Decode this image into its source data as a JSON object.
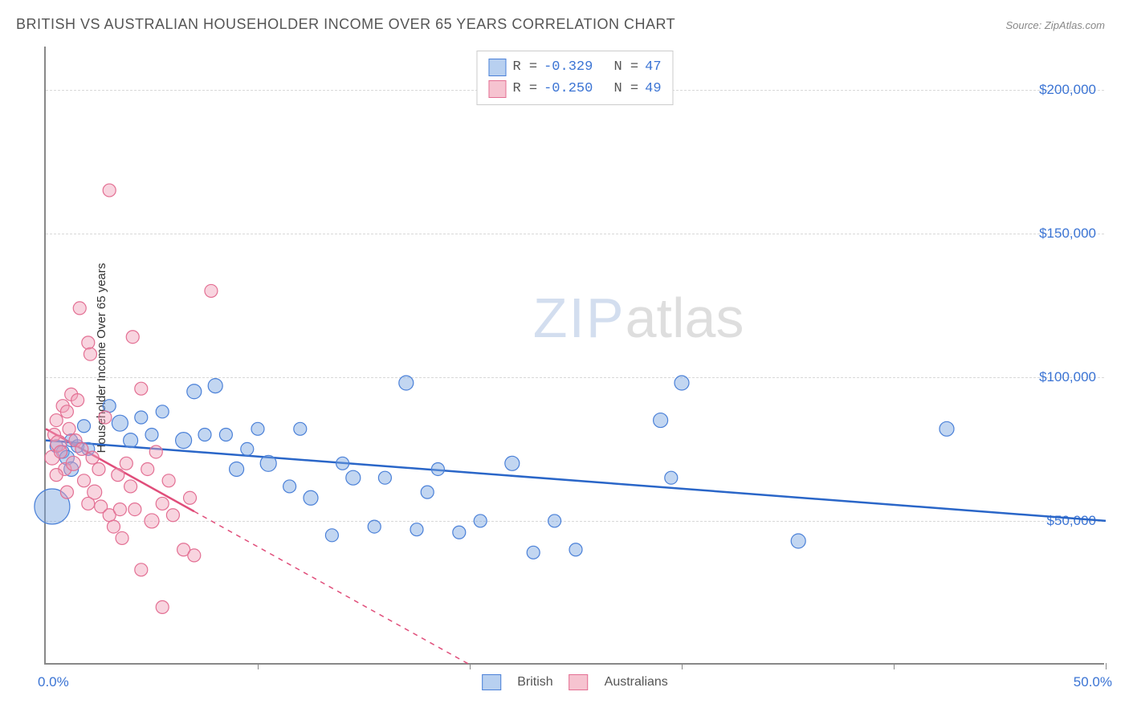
{
  "title": "BRITISH VS AUSTRALIAN HOUSEHOLDER INCOME OVER 65 YEARS CORRELATION CHART",
  "source": "Source: ZipAtlas.com",
  "watermark": {
    "zip": "ZIP",
    "atlas": "atlas"
  },
  "chart": {
    "type": "scatter",
    "ylabel": "Householder Income Over 65 years",
    "background_color": "#ffffff",
    "grid_color": "#d8d8d8",
    "axis_color": "#888888",
    "xlim": [
      0,
      50
    ],
    "ylim": [
      0,
      215000
    ],
    "x_axis": {
      "label_left": "0.0%",
      "label_right": "50.0%",
      "tick_positions_pct": [
        0,
        10,
        20,
        30,
        40,
        50
      ],
      "label_color": "#3b74d4",
      "label_fontsize": 17
    },
    "y_axis": {
      "gridlines": [
        50000,
        100000,
        150000,
        200000
      ],
      "tick_labels": [
        "$50,000",
        "$100,000",
        "$150,000",
        "$200,000"
      ],
      "label_color": "#3b74d4",
      "label_fontsize": 17
    },
    "stat_legend": {
      "border_color": "#cccccc",
      "font_family": "Courier New",
      "rows": [
        {
          "swatch_fill": "#b8d0f0",
          "swatch_border": "#4a80d8",
          "r": "-0.329",
          "n": "47"
        },
        {
          "swatch_fill": "#f6c3d0",
          "swatch_border": "#e36f93",
          "r": "-0.250",
          "n": "49"
        }
      ],
      "label_r": "R =",
      "label_n": "N =",
      "value_color": "#3b74d4",
      "text_color": "#555555"
    },
    "series_legend": [
      {
        "label": "British",
        "swatch_fill": "#b8d0f0",
        "swatch_border": "#4a80d8"
      },
      {
        "label": "Australians",
        "swatch_fill": "#f6c3d0",
        "swatch_border": "#e36f93"
      }
    ],
    "series": [
      {
        "name": "British",
        "fill": "rgba(120,165,225,0.45)",
        "stroke": "#4a80d8",
        "stroke_width": 1.2,
        "trend": {
          "color": "#2a66c8",
          "width": 2.5,
          "x1": 0,
          "y1": 78000,
          "x2": 50,
          "y2": 50000,
          "dash_solid_until_x": 50
        },
        "points": [
          {
            "x": 0.3,
            "y": 55000,
            "r": 22
          },
          {
            "x": 0.5,
            "y": 76000,
            "r": 8
          },
          {
            "x": 0.8,
            "y": 74000,
            "r": 8
          },
          {
            "x": 1.0,
            "y": 72000,
            "r": 9
          },
          {
            "x": 1.2,
            "y": 78000,
            "r": 8
          },
          {
            "x": 1.2,
            "y": 68000,
            "r": 9
          },
          {
            "x": 1.5,
            "y": 76000,
            "r": 8
          },
          {
            "x": 1.8,
            "y": 83000,
            "r": 8
          },
          {
            "x": 2.0,
            "y": 75000,
            "r": 8
          },
          {
            "x": 3.0,
            "y": 90000,
            "r": 8
          },
          {
            "x": 3.5,
            "y": 84000,
            "r": 10
          },
          {
            "x": 4.0,
            "y": 78000,
            "r": 9
          },
          {
            "x": 4.5,
            "y": 86000,
            "r": 8
          },
          {
            "x": 5.0,
            "y": 80000,
            "r": 8
          },
          {
            "x": 5.5,
            "y": 88000,
            "r": 8
          },
          {
            "x": 6.5,
            "y": 78000,
            "r": 10
          },
          {
            "x": 7.0,
            "y": 95000,
            "r": 9
          },
          {
            "x": 7.5,
            "y": 80000,
            "r": 8
          },
          {
            "x": 8.0,
            "y": 97000,
            "r": 9
          },
          {
            "x": 8.5,
            "y": 80000,
            "r": 8
          },
          {
            "x": 9.0,
            "y": 68000,
            "r": 9
          },
          {
            "x": 9.5,
            "y": 75000,
            "r": 8
          },
          {
            "x": 10.0,
            "y": 82000,
            "r": 8
          },
          {
            "x": 10.5,
            "y": 70000,
            "r": 10
          },
          {
            "x": 11.5,
            "y": 62000,
            "r": 8
          },
          {
            "x": 12.0,
            "y": 82000,
            "r": 8
          },
          {
            "x": 12.5,
            "y": 58000,
            "r": 9
          },
          {
            "x": 13.5,
            "y": 45000,
            "r": 8
          },
          {
            "x": 14.0,
            "y": 70000,
            "r": 8
          },
          {
            "x": 14.5,
            "y": 65000,
            "r": 9
          },
          {
            "x": 15.5,
            "y": 48000,
            "r": 8
          },
          {
            "x": 16.0,
            "y": 65000,
            "r": 8
          },
          {
            "x": 17.0,
            "y": 98000,
            "r": 9
          },
          {
            "x": 17.5,
            "y": 47000,
            "r": 8
          },
          {
            "x": 18.0,
            "y": 60000,
            "r": 8
          },
          {
            "x": 18.5,
            "y": 68000,
            "r": 8
          },
          {
            "x": 19.5,
            "y": 46000,
            "r": 8
          },
          {
            "x": 20.5,
            "y": 50000,
            "r": 8
          },
          {
            "x": 22.0,
            "y": 70000,
            "r": 9
          },
          {
            "x": 23.0,
            "y": 39000,
            "r": 8
          },
          {
            "x": 24.0,
            "y": 50000,
            "r": 8
          },
          {
            "x": 25.0,
            "y": 40000,
            "r": 8
          },
          {
            "x": 29.0,
            "y": 85000,
            "r": 9
          },
          {
            "x": 30.0,
            "y": 98000,
            "r": 9
          },
          {
            "x": 35.5,
            "y": 43000,
            "r": 9
          },
          {
            "x": 42.5,
            "y": 82000,
            "r": 9
          },
          {
            "x": 29.5,
            "y": 65000,
            "r": 8
          }
        ]
      },
      {
        "name": "Australians",
        "fill": "rgba(240,160,185,0.45)",
        "stroke": "#e36f93",
        "stroke_width": 1.2,
        "trend": {
          "color": "#e04d7a",
          "width": 2.5,
          "x1": 0,
          "y1": 82000,
          "x2": 20,
          "y2": 0,
          "dash_solid_until_x": 7
        },
        "points": [
          {
            "x": 0.3,
            "y": 72000,
            "r": 9
          },
          {
            "x": 0.4,
            "y": 80000,
            "r": 8
          },
          {
            "x": 0.5,
            "y": 85000,
            "r": 8
          },
          {
            "x": 0.6,
            "y": 77000,
            "r": 10
          },
          {
            "x": 0.7,
            "y": 74000,
            "r": 8
          },
          {
            "x": 0.8,
            "y": 90000,
            "r": 8
          },
          {
            "x": 0.9,
            "y": 68000,
            "r": 8
          },
          {
            "x": 1.0,
            "y": 88000,
            "r": 8
          },
          {
            "x": 1.1,
            "y": 82000,
            "r": 8
          },
          {
            "x": 1.2,
            "y": 94000,
            "r": 8
          },
          {
            "x": 1.3,
            "y": 70000,
            "r": 9
          },
          {
            "x": 1.4,
            "y": 78000,
            "r": 8
          },
          {
            "x": 1.5,
            "y": 92000,
            "r": 8
          },
          {
            "x": 1.6,
            "y": 124000,
            "r": 8
          },
          {
            "x": 1.7,
            "y": 75000,
            "r": 8
          },
          {
            "x": 1.8,
            "y": 64000,
            "r": 8
          },
          {
            "x": 2.0,
            "y": 112000,
            "r": 8
          },
          {
            "x": 2.1,
            "y": 108000,
            "r": 8
          },
          {
            "x": 2.2,
            "y": 72000,
            "r": 8
          },
          {
            "x": 2.3,
            "y": 60000,
            "r": 9
          },
          {
            "x": 2.5,
            "y": 68000,
            "r": 8
          },
          {
            "x": 2.6,
            "y": 55000,
            "r": 8
          },
          {
            "x": 2.8,
            "y": 86000,
            "r": 8
          },
          {
            "x": 3.0,
            "y": 52000,
            "r": 8
          },
          {
            "x": 3.0,
            "y": 165000,
            "r": 8
          },
          {
            "x": 3.2,
            "y": 48000,
            "r": 8
          },
          {
            "x": 3.4,
            "y": 66000,
            "r": 8
          },
          {
            "x": 3.5,
            "y": 54000,
            "r": 8
          },
          {
            "x": 3.6,
            "y": 44000,
            "r": 8
          },
          {
            "x": 3.8,
            "y": 70000,
            "r": 8
          },
          {
            "x": 4.0,
            "y": 62000,
            "r": 8
          },
          {
            "x": 4.1,
            "y": 114000,
            "r": 8
          },
          {
            "x": 4.2,
            "y": 54000,
            "r": 8
          },
          {
            "x": 4.5,
            "y": 96000,
            "r": 8
          },
          {
            "x": 4.5,
            "y": 33000,
            "r": 8
          },
          {
            "x": 4.8,
            "y": 68000,
            "r": 8
          },
          {
            "x": 5.0,
            "y": 50000,
            "r": 9
          },
          {
            "x": 5.2,
            "y": 74000,
            "r": 8
          },
          {
            "x": 5.5,
            "y": 56000,
            "r": 8
          },
          {
            "x": 5.8,
            "y": 64000,
            "r": 8
          },
          {
            "x": 6.0,
            "y": 52000,
            "r": 8
          },
          {
            "x": 6.5,
            "y": 40000,
            "r": 8
          },
          {
            "x": 6.8,
            "y": 58000,
            "r": 8
          },
          {
            "x": 7.0,
            "y": 38000,
            "r": 8
          },
          {
            "x": 7.8,
            "y": 130000,
            "r": 8
          },
          {
            "x": 5.5,
            "y": 20000,
            "r": 8
          },
          {
            "x": 1.0,
            "y": 60000,
            "r": 8
          },
          {
            "x": 2.0,
            "y": 56000,
            "r": 8
          },
          {
            "x": 0.5,
            "y": 66000,
            "r": 8
          }
        ]
      }
    ]
  }
}
